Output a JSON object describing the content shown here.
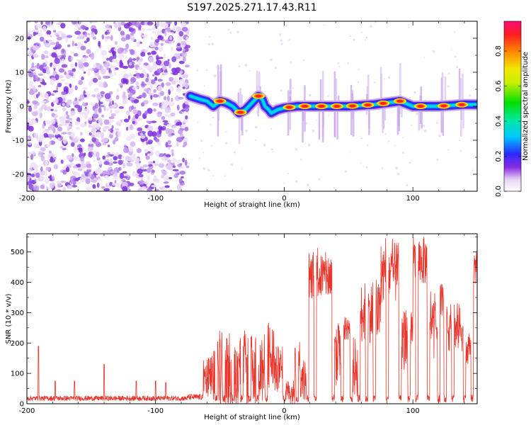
{
  "title": "S197.2025.271.17.43.R11",
  "chart_data": [
    {
      "type": "heatmap",
      "xlabel": "Height of straight line (km)",
      "ylabel": "Frequency (Hz)",
      "xlim": [
        -200,
        150
      ],
      "ylim": [
        -25,
        25
      ],
      "xticks": [
        -200,
        -100,
        0,
        100
      ],
      "xtick_labels": [
        "-200",
        "-100",
        "0",
        "100"
      ],
      "yticks": [
        -20,
        -10,
        0,
        10,
        20
      ],
      "ytick_labels": [
        "-20",
        "-10",
        "0",
        "10",
        "20"
      ],
      "noise_region_end_x": -75,
      "ridge": {
        "x": [
          -73,
          -65,
          -60,
          -55,
          -50,
          -45,
          -40,
          -35,
          -30,
          -25,
          -20,
          -17,
          -15,
          -12,
          -10,
          -5,
          0,
          10,
          30,
          50,
          70,
          80,
          90,
          100,
          120,
          140,
          150
        ],
        "y": [
          3,
          2,
          1.5,
          0,
          1.5,
          1,
          0,
          -2,
          -1,
          1,
          3,
          2,
          0,
          -1,
          -2,
          -1,
          -0.5,
          0,
          0,
          0,
          0.5,
          1,
          1.5,
          0,
          0,
          0.5,
          0.5
        ]
      },
      "peak_centers_x": [
        -50,
        -34,
        -20,
        4,
        16,
        29,
        41,
        53,
        65,
        77,
        90,
        106,
        124,
        138
      ],
      "colorbar": {
        "label": "Normalized spectral amplitude",
        "ticks": [
          0.0,
          0.2,
          0.4,
          0.6,
          0.8
        ],
        "tick_labels": [
          "0.0",
          "0.2",
          "0.4",
          "0.6",
          "0.8"
        ],
        "range": [
          0,
          0.97
        ]
      }
    },
    {
      "type": "line",
      "xlabel": "Height of straight line (km)",
      "ylabel": "SNR (10 * v/v)",
      "xlim": [
        -200,
        150
      ],
      "ylim": [
        0,
        560
      ],
      "xticks": [
        -200,
        -100,
        0,
        100
      ],
      "xtick_labels": [
        "-200",
        "-100",
        "0",
        "100"
      ],
      "yticks": [
        0,
        100,
        200,
        300,
        400,
        500
      ],
      "ytick_labels": [
        "0",
        "100",
        "200",
        "300",
        "400",
        "500"
      ],
      "color": "#e8352b",
      "spikes": [
        {
          "x": -191,
          "y": 190
        },
        {
          "x": -178,
          "y": 75
        },
        {
          "x": -163,
          "y": 75
        },
        {
          "x": -140,
          "y": 130
        },
        {
          "x": -115,
          "y": 75
        },
        {
          "x": -100,
          "y": 75
        },
        {
          "x": -92,
          "y": 70
        }
      ],
      "segments": [
        {
          "x0": -200,
          "x1": -75,
          "base": 18,
          "var": 8
        },
        {
          "x0": -75,
          "x1": -63,
          "base": 22,
          "var": 10
        },
        {
          "x0": -63,
          "x1": -55,
          "base": 80,
          "var": 80
        },
        {
          "x0": -55,
          "x1": -15,
          "base": 110,
          "var": 120
        },
        {
          "x0": -15,
          "x1": -8,
          "base": 150,
          "var": 120
        },
        {
          "x0": -8,
          "x1": 0,
          "base": 110,
          "var": 80
        },
        {
          "x0": 0,
          "x1": 8,
          "base": 40,
          "var": 40
        },
        {
          "x0": 8,
          "x1": 12,
          "base": 150,
          "var": 80
        },
        {
          "x0": 12,
          "x1": 18,
          "base": 80,
          "var": 70
        },
        {
          "x0": 18,
          "x1": 38,
          "base": 420,
          "var": 80
        },
        {
          "x0": 38,
          "x1": 45,
          "base": 150,
          "var": 100
        },
        {
          "x0": 45,
          "x1": 52,
          "base": 250,
          "var": 40
        },
        {
          "x0": 52,
          "x1": 58,
          "base": 120,
          "var": 100
        },
        {
          "x0": 58,
          "x1": 75,
          "base": 300,
          "var": 100
        },
        {
          "x0": 75,
          "x1": 90,
          "base": 430,
          "var": 100
        },
        {
          "x0": 90,
          "x1": 97,
          "base": 200,
          "var": 120
        },
        {
          "x0": 97,
          "x1": 100,
          "base": 250,
          "var": 80
        },
        {
          "x0": 100,
          "x1": 112,
          "base": 470,
          "var": 80
        },
        {
          "x0": 112,
          "x1": 120,
          "base": 250,
          "var": 100
        },
        {
          "x0": 120,
          "x1": 125,
          "base": 350,
          "var": 60
        },
        {
          "x0": 125,
          "x1": 140,
          "base": 250,
          "var": 80
        },
        {
          "x0": 140,
          "x1": 146,
          "base": 180,
          "var": 50
        },
        {
          "x0": 146,
          "x1": 150,
          "base": 440,
          "var": 60
        }
      ],
      "dips_x": [
        -53,
        -47,
        -40,
        -33,
        -27,
        -21,
        -14,
        0,
        10,
        18,
        24,
        38,
        45,
        52,
        58,
        64,
        70,
        80,
        90,
        97,
        103,
        112,
        120,
        125,
        131,
        140,
        146
      ]
    }
  ]
}
